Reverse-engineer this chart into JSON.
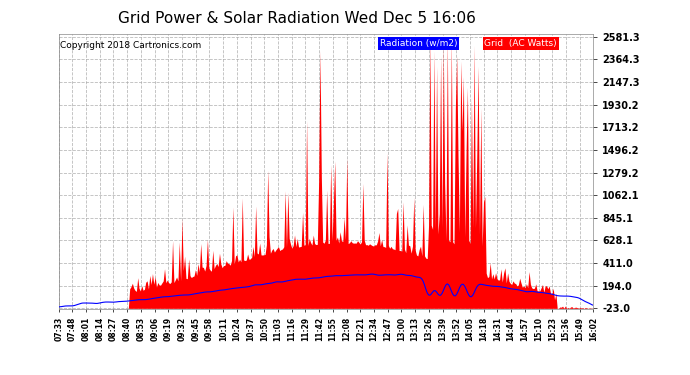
{
  "title": "Grid Power & Solar Radiation Wed Dec 5 16:06",
  "copyright": "Copyright 2018 Cartronics.com",
  "legend_radiation": "Radiation (w/m2)",
  "legend_grid": "Grid  (AC Watts)",
  "ymin": -23.0,
  "ymax": 2581.3,
  "yticks": [
    -23.0,
    194.0,
    411.0,
    628.1,
    845.1,
    1062.1,
    1279.2,
    1496.2,
    1713.2,
    1930.2,
    2147.3,
    2364.3,
    2581.3
  ],
  "background_color": "#ffffff",
  "grid_color": "#aaaaaa",
  "radiation_color": "#0000ff",
  "grid_ac_color": "#ff0000",
  "xtick_labels": [
    "07:33",
    "07:48",
    "08:01",
    "08:14",
    "08:27",
    "08:40",
    "08:53",
    "09:06",
    "09:19",
    "09:32",
    "09:45",
    "09:58",
    "10:11",
    "10:24",
    "10:37",
    "10:50",
    "11:03",
    "11:16",
    "11:29",
    "11:42",
    "11:55",
    "12:08",
    "12:21",
    "12:34",
    "12:47",
    "13:00",
    "13:13",
    "13:26",
    "13:39",
    "13:52",
    "14:05",
    "14:18",
    "14:31",
    "14:44",
    "14:57",
    "15:10",
    "15:23",
    "15:36",
    "15:49",
    "16:02"
  ],
  "n_points": 400
}
